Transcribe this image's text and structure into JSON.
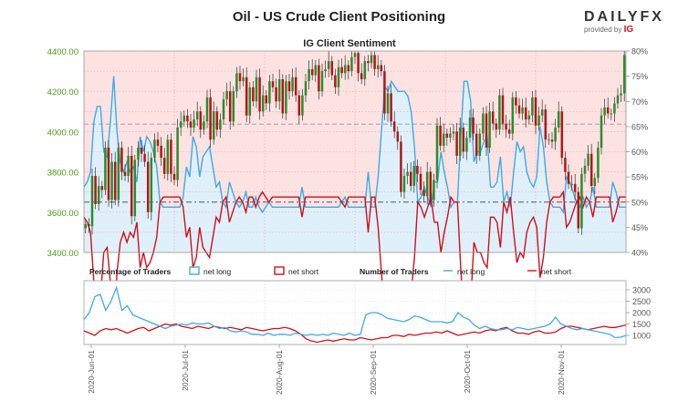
{
  "header": {
    "title": "Oil - US Crude Client Positioning",
    "brand_name": "DAILY",
    "brand_fx": "FX",
    "provided_by": "provided by",
    "provider": "IG"
  },
  "chart_data": [
    {
      "type": "line",
      "title": "IG Client Sentiment",
      "price_axis_ticks": [
        "4400.00",
        "4200.00",
        "4000.00",
        "3800.00",
        "3600.00",
        "3400.00"
      ],
      "percent_axis_ticks": [
        "80%",
        "75%",
        "70%",
        "65%",
        "60%",
        "55%",
        "50%",
        "45%",
        "40%"
      ],
      "price_ylim": [
        3400,
        4400
      ],
      "percent_ylim": [
        40,
        80
      ],
      "reference_lines": {
        "price": 3650,
        "percent": 65.5
      },
      "grid": true,
      "series": [
        {
          "name": "net long",
          "color": "#41a9e8",
          "values": [
            53,
            54,
            56,
            66,
            69,
            69,
            60,
            59,
            66,
            75,
            64,
            58,
            56,
            58,
            56,
            57,
            54,
            63,
            60,
            63,
            62,
            60,
            57,
            50,
            49,
            49,
            49,
            49,
            49,
            49,
            51,
            57,
            55,
            63,
            61,
            55,
            59,
            60,
            61,
            57,
            53,
            54,
            50,
            49,
            54,
            52,
            50,
            49,
            50,
            52,
            49,
            49,
            51,
            49,
            48,
            49,
            50,
            49,
            49,
            49,
            49,
            49,
            49,
            49,
            49,
            49,
            53,
            49,
            49,
            49,
            49,
            49,
            49,
            49,
            49,
            49,
            49,
            49,
            50,
            51,
            49,
            49,
            49,
            49,
            49,
            49,
            56,
            49,
            49,
            55,
            64,
            73,
            72,
            74,
            73,
            72,
            72,
            72,
            71,
            68,
            61,
            50,
            51,
            53,
            51,
            49,
            54,
            54,
            60,
            56,
            53,
            49,
            50,
            50,
            63,
            74,
            74,
            70,
            58,
            60,
            60,
            62,
            63,
            53,
            53,
            54,
            59,
            50,
            52,
            49,
            56,
            62,
            60,
            61,
            56,
            54,
            53,
            55,
            65,
            61,
            54,
            50,
            49,
            49,
            49,
            48,
            55,
            54,
            52,
            50,
            49,
            51,
            49,
            50,
            53,
            49,
            49,
            49,
            49,
            49,
            54,
            52,
            49,
            49,
            49
          ]
        },
        {
          "name": "net short",
          "color": "#d0101b",
          "values": [
            47,
            46,
            44,
            34,
            31,
            31,
            40,
            41,
            34,
            25,
            36,
            42,
            44,
            42,
            44,
            43,
            46,
            37,
            40,
            37,
            38,
            40,
            43,
            50,
            51,
            51,
            51,
            51,
            51,
            51,
            49,
            43,
            45,
            37,
            39,
            45,
            41,
            40,
            39,
            43,
            47,
            46,
            50,
            51,
            46,
            48,
            50,
            51,
            50,
            48,
            51,
            51,
            49,
            51,
            52,
            51,
            50,
            51,
            51,
            51,
            51,
            51,
            51,
            51,
            51,
            51,
            47,
            51,
            51,
            51,
            51,
            51,
            51,
            51,
            51,
            51,
            51,
            51,
            50,
            49,
            51,
            51,
            51,
            51,
            51,
            51,
            44,
            51,
            51,
            45,
            36,
            27,
            28,
            26,
            27,
            28,
            28,
            28,
            29,
            32,
            39,
            50,
            49,
            47,
            49,
            51,
            46,
            46,
            40,
            44,
            47,
            51,
            50,
            50,
            37,
            26,
            26,
            30,
            42,
            40,
            40,
            38,
            37,
            47,
            47,
            46,
            41,
            50,
            48,
            51,
            44,
            38,
            40,
            39,
            44,
            46,
            47,
            45,
            35,
            39,
            46,
            50,
            51,
            51,
            51,
            52,
            45,
            46,
            48,
            50,
            51,
            49,
            51,
            50,
            47,
            51,
            51,
            51,
            51,
            51,
            46,
            48,
            51,
            51,
            51
          ]
        },
        {
          "name": "price",
          "color": "#2a7d2a",
          "values": [
            3540,
            3530,
            3780,
            3640,
            3730,
            3710,
            3920,
            3660,
            3850,
            3660,
            3920,
            3800,
            3780,
            3880,
            3580,
            3860,
            3920,
            3890,
            3850,
            3600,
            3870,
            3960,
            3930,
            3870,
            3790,
            3960,
            3790,
            3760,
            4020,
            4050,
            4080,
            4050,
            4020,
            4060,
            4100,
            4010,
            4050,
            4170,
            3960,
            4100,
            4010,
            4060,
            4160,
            4200,
            4050,
            4200,
            4290,
            4250,
            4270,
            4080,
            4220,
            4150,
            4270,
            4100,
            4180,
            4140,
            4250,
            4220,
            4150,
            4260,
            4090,
            4250,
            4200,
            4270,
            4180,
            4080,
            4180,
            4250,
            4310,
            4280,
            4330,
            4200,
            4300,
            4310,
            4350,
            4280,
            4220,
            4320,
            4290,
            4330,
            4300,
            4370,
            4390,
            4290,
            4260,
            4350,
            4340,
            4380,
            4310,
            4330,
            4300,
            4090,
            4190,
            4050,
            4000,
            3950,
            3700,
            3780,
            3800,
            3730,
            3830,
            3790,
            3710,
            3680,
            3800,
            3660,
            3760,
            4030,
            3930,
            3990,
            3970,
            3990,
            4000,
            3880,
            4020,
            3900,
            3970,
            4070,
            3990,
            3880,
            3990,
            4090,
            3920,
            4100,
            4040,
            4010,
            4180,
            4040,
            4010,
            3990,
            4170,
            4130,
            4090,
            4120,
            4060,
            4080,
            4170,
            4030,
            4080,
            4110,
            3960,
            3960,
            3950,
            4020,
            4100,
            3870,
            3800,
            3740,
            3740,
            3700,
            3520,
            3790,
            3830,
            3890,
            3730,
            3770,
            3920,
            4080,
            4120,
            4090,
            4090,
            4140,
            4180,
            4190,
            4380
          ]
        }
      ]
    },
    {
      "type": "line",
      "title": "",
      "legend_left_title": "Percentage of Traders",
      "legend_right_title": "Number of Traders",
      "legend_items": [
        "net long",
        "net short",
        "net long",
        "net short"
      ],
      "y_ticks": [
        "3000",
        "2500",
        "2000",
        "1500",
        "1000"
      ],
      "ylim": [
        600,
        3400
      ],
      "x_tick_labels": [
        "2020-Jun-01",
        "2020-Jul-01",
        "2020-Aug-01",
        "2020-Sep-01",
        "2020-Oct-01",
        "2020-Nov-01"
      ],
      "series": [
        {
          "name": "net long",
          "color": "#41a9e8",
          "values": [
            1700,
            2000,
            2700,
            2800,
            2100,
            2500,
            3100,
            2100,
            2300,
            1900,
            1800,
            1700,
            1600,
            1500,
            1400,
            1300,
            1400,
            1450,
            1500,
            1450,
            1550,
            1500,
            1500,
            1550,
            1400,
            1300,
            1350,
            1200,
            1150,
            1200,
            1150,
            1050,
            1050,
            1000,
            1100,
            1000,
            1050,
            1050,
            1000,
            1100,
            1050,
            1000,
            1050,
            1000,
            1050,
            1000,
            1100,
            1050,
            1000,
            1100,
            1000,
            1050,
            1900,
            2000,
            2000,
            1900,
            1750,
            1700,
            1650,
            1600,
            1700,
            1850,
            1800,
            1700,
            1600,
            1600,
            1600,
            1550,
            1600,
            2000,
            1800,
            1700,
            1450,
            1300,
            1400,
            1300,
            1250,
            1250,
            1300,
            1250,
            1350,
            1300,
            1250,
            1300,
            1350,
            1400,
            1500,
            1800,
            1500,
            1400,
            1300,
            1250,
            1300,
            1250,
            1200,
            1150,
            1100,
            1050,
            900,
            920,
            1000
          ]
        },
        {
          "name": "net short",
          "color": "#d0101b",
          "values": [
            1200,
            1100,
            1000,
            1200,
            1300,
            1250,
            1300,
            1200,
            1100,
            1200,
            1300,
            1350,
            1200,
            1300,
            1400,
            1500,
            1450,
            1500,
            1400,
            1350,
            1300,
            1400,
            1350,
            1300,
            1400,
            1350,
            1300,
            1350,
            1300,
            1250,
            1350,
            1300,
            1250,
            1200,
            1250,
            1300,
            1300,
            1350,
            1300,
            1200,
            1050,
            850,
            750,
            700,
            750,
            800,
            750,
            800,
            850,
            800,
            800,
            900,
            850,
            800,
            850,
            900,
            900,
            1000,
            1000,
            950,
            1050,
            1000,
            1050,
            1100,
            1100,
            1150,
            1100,
            1200,
            1100,
            1000,
            1050,
            1100,
            1150,
            1100,
            1200,
            1250,
            1200,
            1300,
            1350,
            1200,
            1100,
            1100,
            1050,
            1150,
            1200,
            1100,
            1100,
            1150,
            1300,
            1400,
            1400,
            1350,
            1300,
            1250,
            1300,
            1350,
            1400,
            1350,
            1350,
            1400,
            1450
          ]
        }
      ]
    }
  ],
  "colors": {
    "pink_fill": "#fde2e2",
    "blue_fill": "#dff0fb",
    "grid": "#e7a9a9",
    "axis_text_green": "#4a9a18",
    "axis_text": "#555555"
  }
}
